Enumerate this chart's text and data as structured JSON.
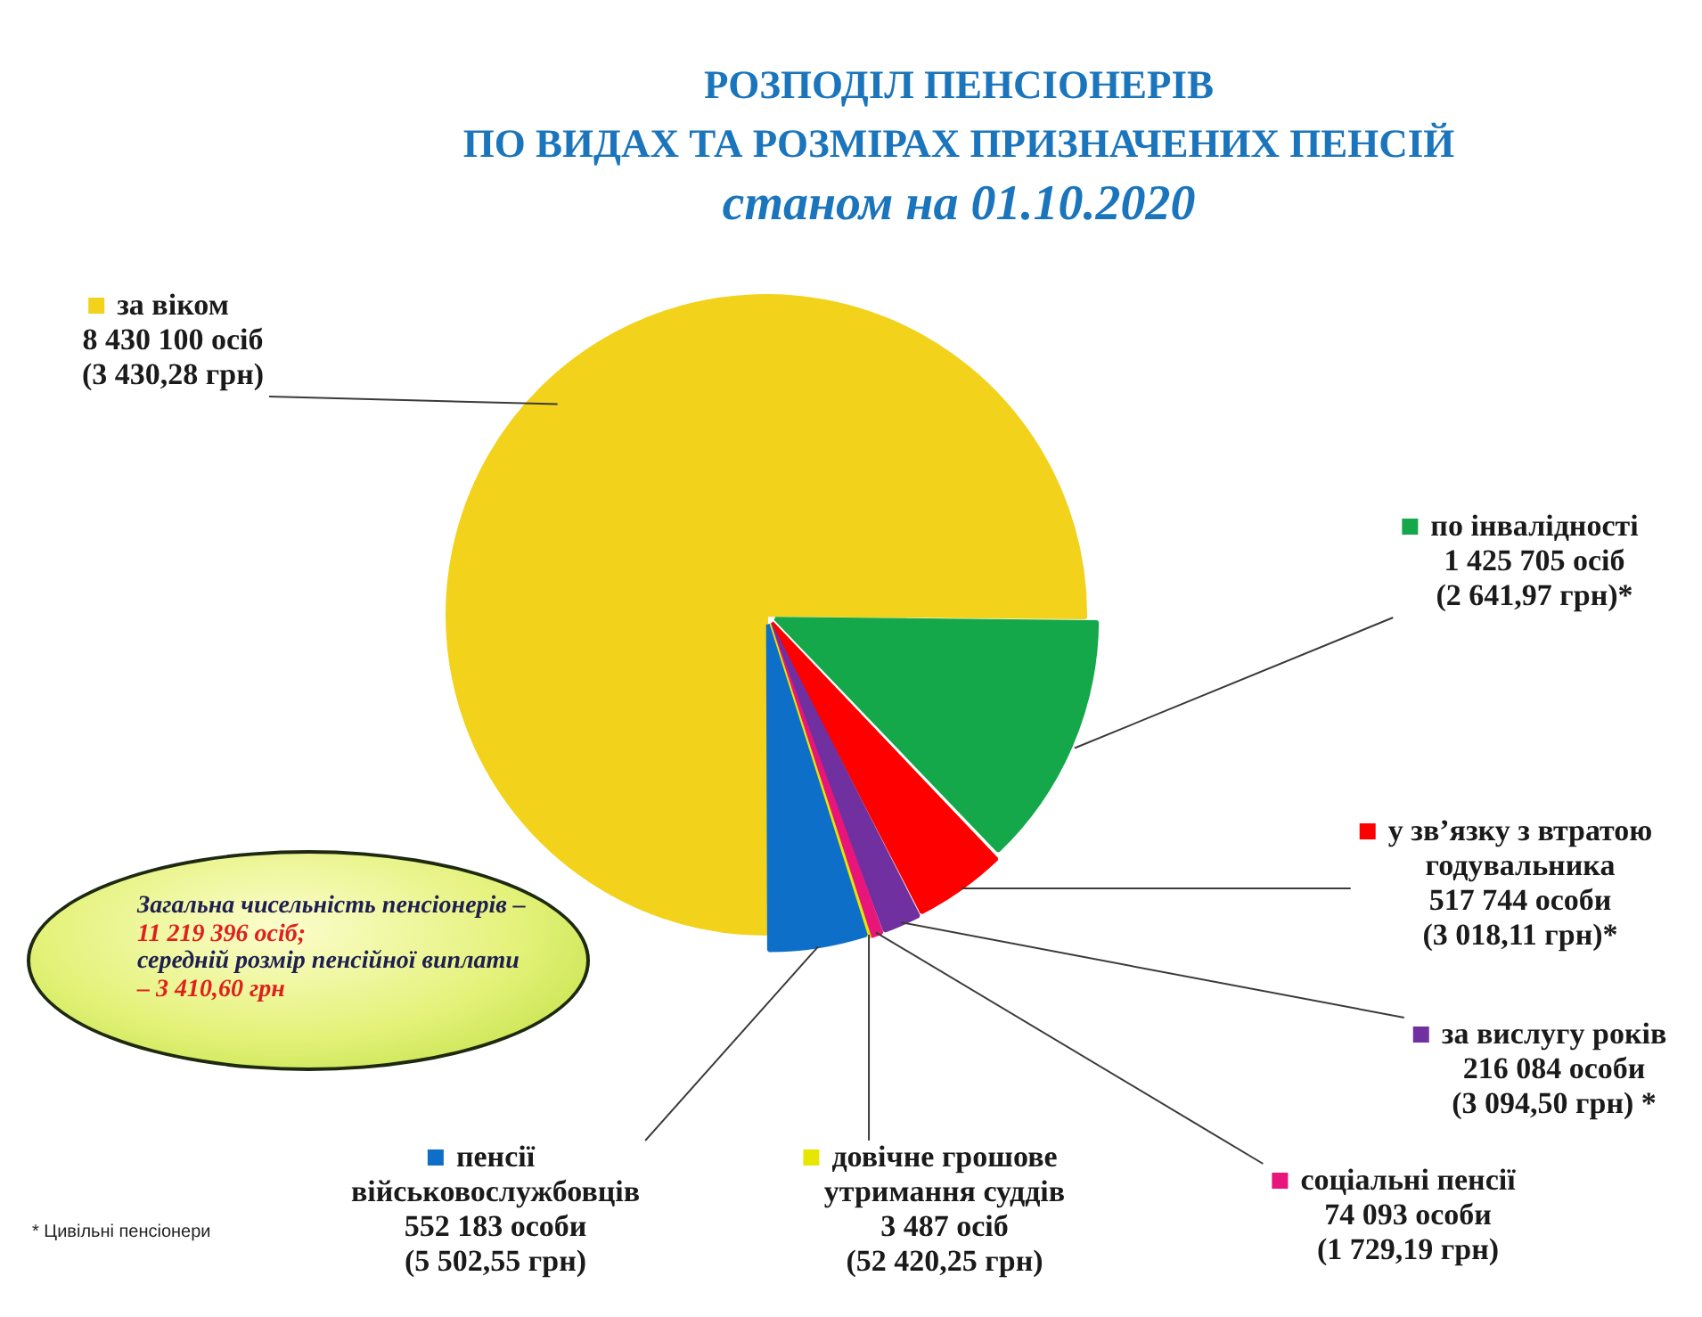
{
  "chart_data": {
    "type": "pie",
    "title": "РОЗПОДІЛ ПЕНСІОНЕРІВ\nПО ВИДАХ ТА РОЗМІРАХ ПРИЗНАЧЕНИХ ПЕНСІЙ",
    "subtitle": "станом на 01.10.2020",
    "categories": [
      "за віком",
      "по інвалідності",
      "у зв’язку з втратою годувальника",
      "за вислугу років",
      "соціальні пенсії",
      "довічне грошове утримання суддів",
      "пенсії військовослужбовців"
    ],
    "values": [
      8430100,
      1425705,
      517744,
      216084,
      74093,
      3487,
      552183
    ],
    "colors": [
      "#f2d21b",
      "#14a84a",
      "#ff0000",
      "#7030a0",
      "#e8157a",
      "#e6e600",
      "#0d6fc8"
    ],
    "value_labels": [
      "8 430 100 осіб\n(3 430,28 грн)",
      "1 425 705 осіб\n(2 641,97 грн)*",
      "517 744 особи\n(3 018,11 грн)*",
      "216 084 особи\n(3 094,50 грн) *",
      "74 093 особи\n(1 729,19 грн)",
      "3 487 осіб\n(52 420,25 грн)",
      "552 183 особи\n(5 502,55 грн)"
    ],
    "legend": "right",
    "annotations": [
      "Загальна чисельність пенсіонерів –",
      "11 219 396 осіб;",
      "середній розмір пенсійної виплати",
      "– 3 410,60 грн",
      "* Цивільні пенсіонери"
    ]
  }
}
